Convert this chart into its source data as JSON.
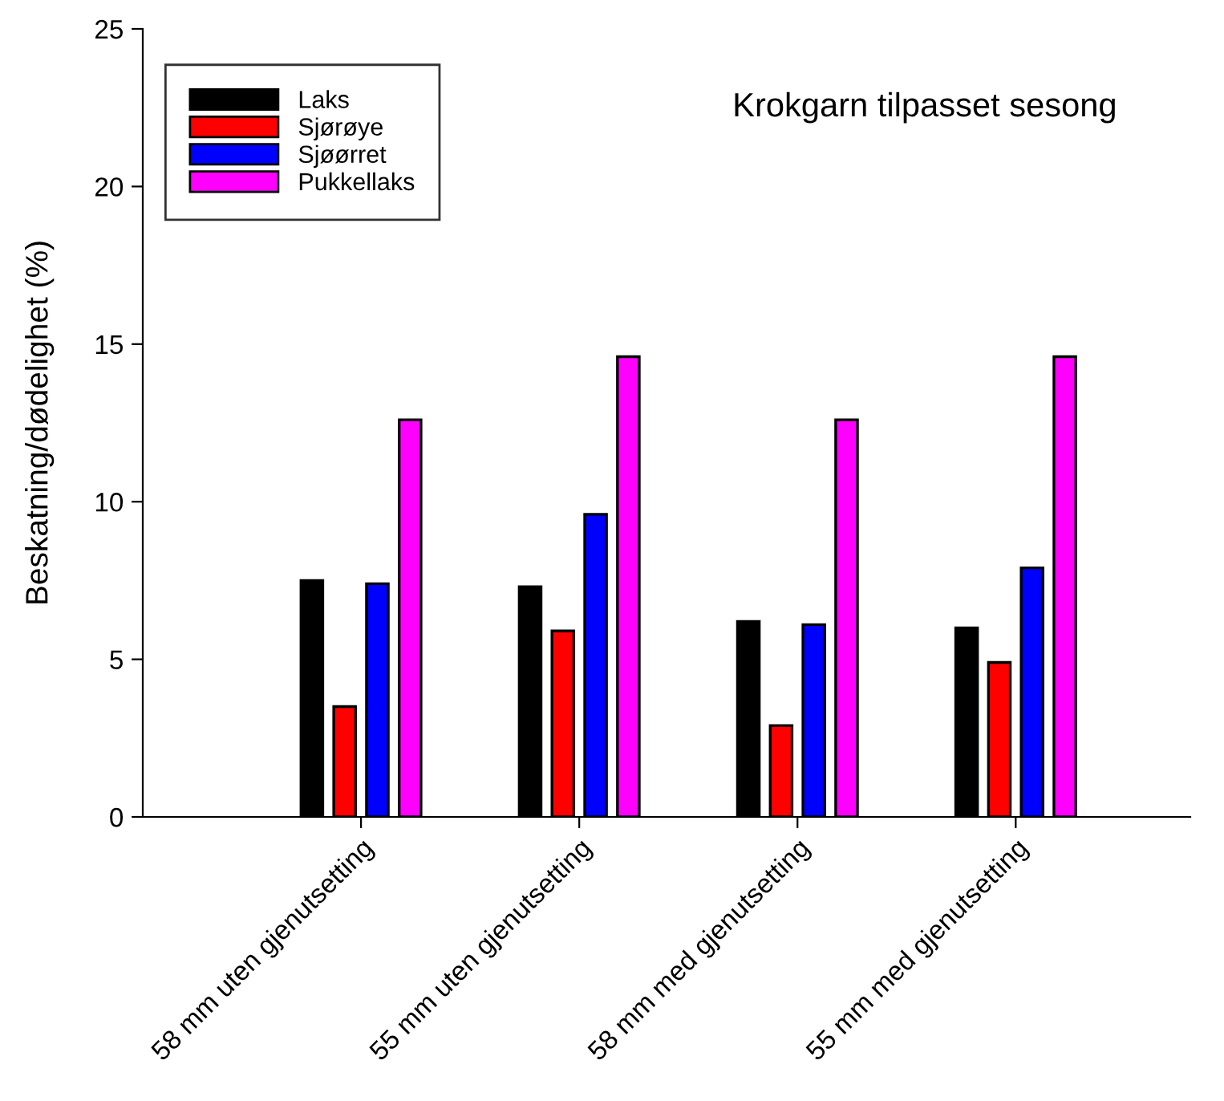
{
  "chart_data": {
    "type": "bar",
    "title": "Krokgarn tilpasset sesong",
    "ylabel": "Beskatning/dødelighet (%)",
    "categories": [
      "58 mm uten gjenutsetting",
      "55 mm uten gjenutsetting",
      "58 mm med gjenutsetting",
      "55 mm med gjenutsetting"
    ],
    "series": [
      {
        "name": "Laks",
        "color": "#000000",
        "values": [
          7.5,
          7.3,
          6.2,
          6.0
        ]
      },
      {
        "name": "Sjørøye",
        "color": "#ff0000",
        "values": [
          3.5,
          5.9,
          2.9,
          4.9
        ]
      },
      {
        "name": "Sjøørret",
        "color": "#0000ff",
        "values": [
          7.4,
          9.6,
          6.1,
          7.9
        ]
      },
      {
        "name": "Pukkellaks",
        "color": "#ff00ff",
        "values": [
          12.6,
          14.6,
          12.6,
          14.6
        ]
      }
    ],
    "ylim": [
      0,
      25
    ],
    "yticks": [
      0,
      5,
      10,
      15,
      20,
      25
    ],
    "grid": false,
    "legend": "top left"
  }
}
